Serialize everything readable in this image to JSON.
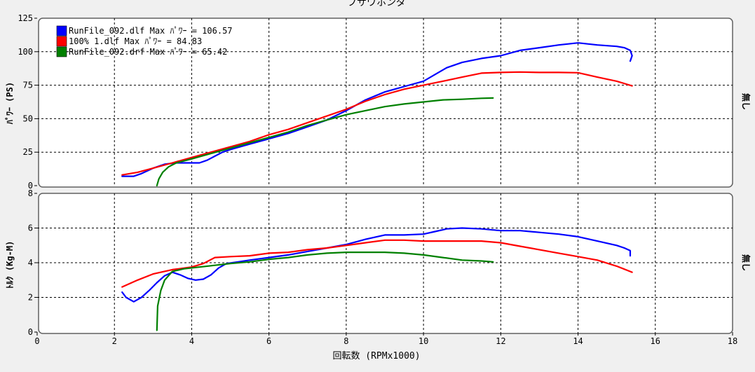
{
  "chart_data": [
    {
      "type": "line",
      "title": "フサワホンダ",
      "ylabel": "ﾊﾟﾜｰ (PS)",
      "right_label": "無し",
      "xlim": [
        0,
        18
      ],
      "ylim": [
        0,
        125
      ],
      "yticks": [
        0,
        25,
        50,
        75,
        100,
        125
      ],
      "grid": true,
      "legend_position": "top-left",
      "legend": [
        "RunFile_092.dlf Max ﾊﾟﾜｰ = 106.57",
        "100% 1.dlf Max ﾊﾟﾜｰ = 84.83",
        "RunFile_092.drf Max ﾊﾟﾜｰ = 65.42"
      ],
      "series": [
        {
          "color": "#0000ff",
          "x": [
            2.2,
            2.5,
            2.7,
            3.0,
            3.3,
            3.6,
            3.9,
            4.2,
            4.4,
            4.6,
            4.8,
            5.0,
            5.5,
            6.0,
            6.5,
            7.0,
            7.5,
            8.0,
            8.5,
            9.0,
            9.5,
            10.0,
            10.3,
            10.6,
            11.0,
            11.5,
            12.0,
            12.5,
            13.0,
            13.5,
            14.0,
            14.5,
            15.0,
            15.2,
            15.35,
            15.4,
            15.35
          ],
          "y": [
            7,
            7,
            9,
            13,
            16,
            17,
            17,
            17,
            19,
            22,
            25,
            27,
            31,
            35,
            39,
            44,
            49,
            56,
            64,
            70,
            74,
            78,
            83,
            88,
            92,
            95,
            97,
            101,
            103,
            105,
            106.57,
            105,
            104,
            103,
            101,
            97,
            93
          ]
        },
        {
          "color": "#ff0000",
          "x": [
            2.2,
            2.6,
            3.0,
            3.5,
            4.0,
            4.5,
            5.0,
            5.5,
            6.0,
            6.5,
            7.0,
            7.5,
            8.0,
            8.5,
            9.0,
            9.5,
            10.0,
            10.5,
            11.0,
            11.5,
            12.0,
            12.5,
            13.0,
            13.5,
            14.0,
            14.5,
            15.0,
            15.4
          ],
          "y": [
            8,
            10,
            13,
            17,
            21,
            25,
            29,
            33,
            38,
            42,
            47,
            52,
            57,
            63,
            68,
            72,
            75,
            78,
            81,
            84,
            84.5,
            84.83,
            84.5,
            84.5,
            84.3,
            81,
            78,
            74.5
          ]
        },
        {
          "color": "#008000",
          "x": [
            3.1,
            3.15,
            3.25,
            3.4,
            3.6,
            4.0,
            4.5,
            5.0,
            5.5,
            6.0,
            6.5,
            7.0,
            7.5,
            8.0,
            8.5,
            9.0,
            9.5,
            10.0,
            10.5,
            11.0,
            11.5,
            11.8
          ],
          "y": [
            0,
            5,
            10,
            14,
            17,
            20,
            24,
            28,
            32,
            36,
            40,
            45,
            49,
            53,
            56,
            59,
            61,
            62.5,
            64,
            64.5,
            65.2,
            65.42
          ]
        }
      ]
    },
    {
      "type": "line",
      "xlabel": "回転数 (RPMx1000)",
      "ylabel": "ﾄﾙｸ (Kg-M)",
      "right_label": "無し",
      "xlim": [
        0,
        18
      ],
      "ylim": [
        0,
        8
      ],
      "xticks": [
        0,
        2,
        4,
        6,
        8,
        10,
        12,
        14,
        16,
        18
      ],
      "yticks": [
        0,
        2,
        4,
        6,
        8
      ],
      "grid": true,
      "series": [
        {
          "color": "#0000ff",
          "x": [
            2.2,
            2.3,
            2.5,
            2.7,
            2.9,
            3.1,
            3.3,
            3.5,
            3.7,
            3.9,
            4.1,
            4.3,
            4.5,
            4.7,
            4.9,
            5.2,
            5.5,
            6.0,
            6.5,
            7.0,
            7.5,
            8.0,
            8.5,
            9.0,
            9.5,
            10.0,
            10.3,
            10.6,
            11.0,
            11.5,
            12.0,
            12.5,
            13.0,
            13.5,
            14.0,
            14.5,
            15.0,
            15.2,
            15.35,
            15.35
          ],
          "y": [
            2.3,
            2.0,
            1.75,
            2.0,
            2.4,
            2.85,
            3.25,
            3.45,
            3.3,
            3.1,
            3.0,
            3.05,
            3.3,
            3.7,
            3.95,
            4.05,
            4.15,
            4.3,
            4.45,
            4.65,
            4.85,
            5.05,
            5.35,
            5.6,
            5.6,
            5.65,
            5.8,
            5.95,
            6.0,
            5.95,
            5.85,
            5.85,
            5.75,
            5.65,
            5.5,
            5.25,
            5.0,
            4.85,
            4.7,
            4.4
          ]
        },
        {
          "color": "#ff0000",
          "x": [
            2.2,
            2.6,
            3.0,
            3.5,
            4.0,
            4.3,
            4.6,
            5.0,
            5.5,
            6.0,
            6.5,
            7.0,
            7.5,
            8.0,
            8.5,
            9.0,
            9.5,
            10.0,
            10.5,
            11.0,
            11.5,
            12.0,
            12.5,
            13.0,
            13.5,
            14.0,
            14.5,
            15.0,
            15.4
          ],
          "y": [
            2.6,
            3.0,
            3.35,
            3.6,
            3.75,
            3.95,
            4.3,
            4.35,
            4.4,
            4.55,
            4.6,
            4.75,
            4.85,
            5.0,
            5.15,
            5.3,
            5.3,
            5.25,
            5.25,
            5.25,
            5.25,
            5.15,
            4.95,
            4.75,
            4.55,
            4.35,
            4.15,
            3.8,
            3.45
          ]
        },
        {
          "color": "#008000",
          "x": [
            3.1,
            3.12,
            3.2,
            3.3,
            3.5,
            3.8,
            4.2,
            4.6,
            5.0,
            5.5,
            6.0,
            6.5,
            7.0,
            7.5,
            8.0,
            8.5,
            9.0,
            9.5,
            10.0,
            10.5,
            11.0,
            11.5,
            11.8
          ],
          "y": [
            0.1,
            1.5,
            2.4,
            3.0,
            3.5,
            3.65,
            3.75,
            3.85,
            3.95,
            4.05,
            4.2,
            4.3,
            4.45,
            4.55,
            4.6,
            4.6,
            4.6,
            4.55,
            4.45,
            4.3,
            4.15,
            4.1,
            4.05
          ]
        }
      ]
    }
  ]
}
